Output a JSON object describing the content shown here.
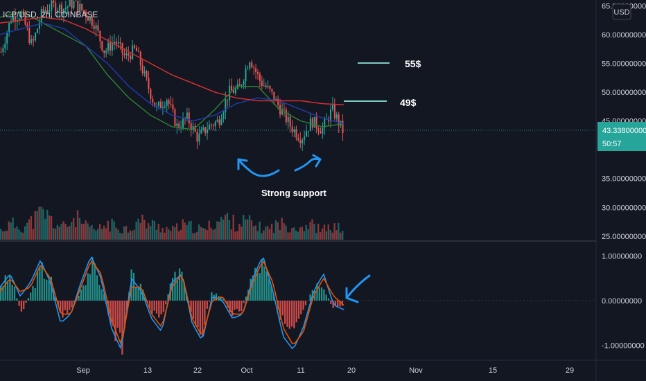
{
  "header": {
    "symbol_line": "ICP/USD, 2h, COINBASE"
  },
  "currency_button": "USD",
  "price_tag": {
    "price": "43.33800000",
    "countdown": "50:57"
  },
  "annotations": {
    "target_high": "55$",
    "target_low": "49$",
    "support_label": "Strong support"
  },
  "colors": {
    "background": "#131722",
    "up": "#26a69a",
    "down": "#ef5350",
    "ma_red": "#d32f2f",
    "ma_blue": "#1e3aa8",
    "ma_green": "#2e7d32",
    "macd_line": "#2196f3",
    "signal_line": "#e65100",
    "annotation_blue": "#2196f3",
    "target_lines": "#80cbc4",
    "price_tag": "#26a69a"
  },
  "chart_data": [
    {
      "type": "candlestick",
      "title": "ICP/USD, 2h, COINBASE",
      "y_axis": {
        "ticks": [
          "65.00000000",
          "60.00000000",
          "55.00000000",
          "50.00000000",
          "45.00000000",
          "35.00000000",
          "30.00000000",
          "25.00000000"
        ],
        "tick_values": [
          65,
          60,
          55,
          50,
          45,
          35,
          30,
          25
        ],
        "range": [
          24.5,
          66
        ]
      },
      "x_axis": {
        "ticks": [
          "Sep",
          "13",
          "22",
          "Oct",
          "11",
          "20",
          "Nov",
          "15",
          "29"
        ]
      },
      "price_path": [
        {
          "x": 0,
          "y": 57
        },
        {
          "x": 2,
          "y": 63
        },
        {
          "x": 4,
          "y": 63.5
        },
        {
          "x": 6,
          "y": 58
        },
        {
          "x": 8,
          "y": 64
        },
        {
          "x": 10,
          "y": 65
        },
        {
          "x": 12,
          "y": 64.5
        },
        {
          "x": 14,
          "y": 65.5
        },
        {
          "x": 16,
          "y": 64
        },
        {
          "x": 18,
          "y": 62
        },
        {
          "x": 20,
          "y": 57
        },
        {
          "x": 22,
          "y": 59
        },
        {
          "x": 24,
          "y": 56
        },
        {
          "x": 26,
          "y": 57.5
        },
        {
          "x": 28,
          "y": 52
        },
        {
          "x": 30,
          "y": 47
        },
        {
          "x": 32,
          "y": 49
        },
        {
          "x": 34,
          "y": 44
        },
        {
          "x": 36,
          "y": 45.5
        },
        {
          "x": 38,
          "y": 42
        },
        {
          "x": 40,
          "y": 44
        },
        {
          "x": 42,
          "y": 45
        },
        {
          "x": 44,
          "y": 50
        },
        {
          "x": 46,
          "y": 50.5
        },
        {
          "x": 48,
          "y": 56
        },
        {
          "x": 50,
          "y": 52
        },
        {
          "x": 52,
          "y": 50
        },
        {
          "x": 54,
          "y": 47
        },
        {
          "x": 56,
          "y": 44
        },
        {
          "x": 58,
          "y": 42
        },
        {
          "x": 60,
          "y": 45
        },
        {
          "x": 62,
          "y": 43.5
        },
        {
          "x": 64,
          "y": 47
        },
        {
          "x": 66,
          "y": 43.3
        }
      ],
      "ma_red": [
        62,
        62.5,
        63,
        62.5,
        61,
        59,
        57,
        55,
        53,
        51.5,
        50,
        49,
        48.5,
        48.5,
        48.5,
        48,
        47.8
      ],
      "ma_blue": [
        60,
        61,
        62,
        61,
        58,
        55,
        51,
        48,
        46,
        45,
        46,
        48,
        49,
        48.5,
        47,
        45.5,
        44.5
      ],
      "ma_green": [
        63,
        64,
        62,
        60,
        58,
        53,
        49,
        46,
        44,
        43.5,
        47,
        51,
        51,
        47,
        45,
        44,
        44.5
      ],
      "volume": [
        0.3,
        0.5,
        0.4,
        0.6,
        0.9,
        0.5,
        0.4,
        0.7,
        0.4,
        0.3,
        0.5,
        0.4,
        0.35,
        0.6,
        0.5,
        0.4,
        0.3,
        0.45,
        0.4,
        0.3,
        0.55,
        0.7,
        0.5,
        0.6,
        0.4,
        0.35,
        0.5,
        0.45,
        0.4,
        0.5,
        0.3,
        0.4,
        0.35
      ]
    },
    {
      "type": "macd",
      "y_axis": {
        "ticks": [
          "1.00000000",
          "0.00000000",
          "-1.00000000"
        ],
        "tick_values": [
          1,
          0,
          -1
        ],
        "range": [
          -1.3,
          1.3
        ]
      },
      "histogram": [
        0.4,
        0.6,
        -0.3,
        0.2,
        0.8,
        0.5,
        -0.4,
        -0.2,
        0.3,
        0.9,
        0.4,
        -0.6,
        -1.2,
        0.6,
        0.3,
        -0.3,
        -0.5,
        0.5,
        0.7,
        -0.4,
        -0.8,
        0.2,
        0.1,
        -0.3,
        -0.2,
        0.6,
        0.9,
        0.3,
        -0.5,
        -0.9,
        -0.4,
        0.3,
        0.5,
        -0.2,
        -0.1
      ],
      "macd_line": [
        0.3,
        0.6,
        0.1,
        0.4,
        0.9,
        0.4,
        -0.5,
        -0.3,
        0.4,
        1.0,
        0.5,
        -0.6,
        -1.1,
        0.5,
        0.2,
        -0.4,
        -0.7,
        0.4,
        0.6,
        -0.5,
        -0.9,
        0.1,
        0.0,
        -0.4,
        -0.3,
        0.5,
        1.0,
        0.2,
        -0.8,
        -1.1,
        -0.6,
        0.2,
        0.6,
        -0.1,
        -0.2
      ],
      "signal_line": [
        0.2,
        0.5,
        0.2,
        0.3,
        0.8,
        0.5,
        -0.3,
        -0.3,
        0.3,
        0.9,
        0.6,
        -0.4,
        -1.0,
        0.3,
        0.3,
        -0.3,
        -0.6,
        0.3,
        0.6,
        -0.4,
        -0.8,
        0.0,
        0.1,
        -0.3,
        -0.3,
        0.4,
        0.9,
        0.4,
        -0.6,
        -1.0,
        -0.7,
        0.1,
        0.5,
        0.1,
        -0.1
      ]
    }
  ]
}
